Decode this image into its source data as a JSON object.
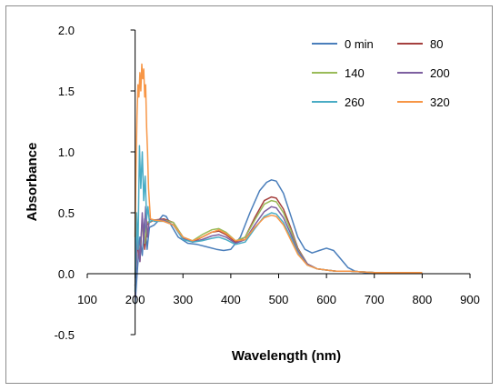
{
  "chart_data": {
    "type": "line",
    "xlabel": "Wavelength  (nm)",
    "ylabel": "Absorbance",
    "xlim": [
      100,
      900
    ],
    "ylim": [
      -0.5,
      2.0
    ],
    "xticks": [
      "100",
      "200",
      "300",
      "400",
      "500",
      "600",
      "700",
      "800",
      "900"
    ],
    "yticks": [
      "-0.5",
      "0.0",
      "0.5",
      "1.0",
      "1.5",
      "2.0"
    ],
    "grid": false,
    "legend_position": "top-right",
    "series": [
      {
        "name": "0 min",
        "color": "#4a7ebb",
        "x": [
          200,
          205,
          210,
          215,
          220,
          225,
          230,
          240,
          250,
          258,
          265,
          275,
          290,
          310,
          330,
          350,
          370,
          385,
          400,
          420,
          440,
          460,
          475,
          485,
          495,
          510,
          525,
          540,
          555,
          570,
          585,
          600,
          615,
          630,
          645,
          660,
          680,
          700,
          800
        ],
        "y": [
          -0.25,
          0.05,
          0.3,
          0.15,
          0.45,
          0.2,
          0.38,
          0.4,
          0.44,
          0.48,
          0.47,
          0.4,
          0.3,
          0.25,
          0.24,
          0.22,
          0.2,
          0.19,
          0.2,
          0.3,
          0.5,
          0.68,
          0.75,
          0.77,
          0.76,
          0.66,
          0.48,
          0.3,
          0.2,
          0.17,
          0.19,
          0.21,
          0.19,
          0.12,
          0.05,
          0.02,
          0.01,
          0.01,
          0.01
        ]
      },
      {
        "name": "80",
        "color": "#a5403e",
        "x": [
          200,
          205,
          210,
          215,
          220,
          225,
          230,
          240,
          260,
          280,
          300,
          320,
          340,
          360,
          375,
          390,
          410,
          430,
          450,
          470,
          485,
          495,
          510,
          525,
          540,
          560,
          580,
          600,
          620,
          650,
          700,
          800
        ],
        "y": [
          -0.1,
          0.25,
          0.1,
          0.45,
          0.2,
          0.4,
          0.42,
          0.44,
          0.45,
          0.42,
          0.3,
          0.26,
          0.3,
          0.34,
          0.35,
          0.32,
          0.26,
          0.3,
          0.46,
          0.6,
          0.63,
          0.62,
          0.53,
          0.38,
          0.21,
          0.08,
          0.04,
          0.03,
          0.02,
          0.02,
          0.01,
          0.01
        ]
      },
      {
        "name": "140",
        "color": "#9abb59",
        "x": [
          200,
          205,
          210,
          215,
          220,
          225,
          230,
          240,
          260,
          280,
          300,
          320,
          340,
          360,
          375,
          390,
          410,
          430,
          450,
          470,
          485,
          495,
          510,
          525,
          540,
          560,
          580,
          600,
          620,
          650,
          700,
          800
        ],
        "y": [
          0.0,
          0.3,
          0.15,
          0.42,
          0.25,
          0.42,
          0.43,
          0.44,
          0.44,
          0.42,
          0.3,
          0.27,
          0.32,
          0.36,
          0.37,
          0.34,
          0.27,
          0.3,
          0.44,
          0.57,
          0.6,
          0.59,
          0.5,
          0.36,
          0.2,
          0.08,
          0.04,
          0.03,
          0.02,
          0.02,
          0.01,
          0.01
        ]
      },
      {
        "name": "200",
        "color": "#7d5fa0",
        "x": [
          200,
          205,
          210,
          215,
          218,
          222,
          226,
          230,
          240,
          260,
          280,
          300,
          320,
          340,
          360,
          375,
          390,
          410,
          430,
          450,
          470,
          485,
          495,
          510,
          525,
          540,
          560,
          580,
          600,
          620,
          650,
          700,
          800
        ],
        "y": [
          -0.2,
          0.35,
          0.1,
          0.5,
          0.25,
          0.55,
          0.3,
          0.45,
          0.44,
          0.44,
          0.4,
          0.29,
          0.26,
          0.28,
          0.31,
          0.32,
          0.3,
          0.25,
          0.28,
          0.4,
          0.51,
          0.55,
          0.54,
          0.46,
          0.33,
          0.19,
          0.08,
          0.04,
          0.03,
          0.02,
          0.02,
          0.01,
          0.01
        ]
      },
      {
        "name": "260",
        "color": "#4aacc5",
        "x": [
          200,
          203,
          206,
          209,
          212,
          215,
          218,
          221,
          224,
          227,
          230,
          235,
          240,
          260,
          280,
          300,
          320,
          340,
          360,
          375,
          390,
          410,
          430,
          450,
          470,
          485,
          495,
          510,
          525,
          540,
          560,
          580,
          600,
          620,
          650,
          700,
          800
        ],
        "y": [
          -0.15,
          0.5,
          0.2,
          1.05,
          0.7,
          1.0,
          0.6,
          0.8,
          0.45,
          0.55,
          0.42,
          0.44,
          0.43,
          0.43,
          0.4,
          0.28,
          0.26,
          0.27,
          0.29,
          0.3,
          0.28,
          0.24,
          0.26,
          0.37,
          0.47,
          0.5,
          0.49,
          0.42,
          0.3,
          0.17,
          0.07,
          0.04,
          0.03,
          0.02,
          0.02,
          0.01,
          0.01
        ]
      },
      {
        "name": "320",
        "color": "#f79646",
        "x": [
          200,
          202,
          204,
          206,
          208,
          210,
          212,
          214,
          216,
          218,
          220,
          222,
          224,
          226,
          228,
          232,
          240,
          260,
          280,
          300,
          320,
          340,
          360,
          375,
          390,
          410,
          430,
          450,
          470,
          485,
          495,
          510,
          525,
          540,
          560,
          580,
          600,
          620,
          650,
          700,
          800
        ],
        "y": [
          0.3,
          0.9,
          1.3,
          1.55,
          1.45,
          1.65,
          1.5,
          1.72,
          1.6,
          1.68,
          1.45,
          1.55,
          1.2,
          1.0,
          0.7,
          0.45,
          0.44,
          0.43,
          0.4,
          0.3,
          0.27,
          0.3,
          0.34,
          0.36,
          0.33,
          0.27,
          0.28,
          0.38,
          0.46,
          0.48,
          0.47,
          0.4,
          0.28,
          0.16,
          0.07,
          0.04,
          0.03,
          0.02,
          0.02,
          0.01,
          0.01
        ]
      }
    ]
  }
}
